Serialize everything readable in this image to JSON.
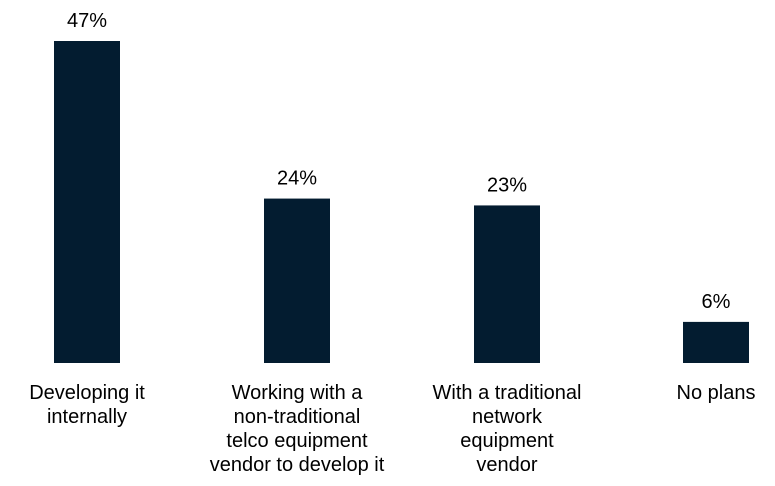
{
  "chart_data": {
    "type": "bar",
    "categories": [
      [
        "Developing it",
        "internally"
      ],
      [
        "Working with a",
        "non-traditional",
        "telco equipment",
        "vendor to develop it"
      ],
      [
        "With a traditional",
        "network",
        "equipment",
        "vendor"
      ],
      [
        "No plans"
      ]
    ],
    "values": [
      47,
      24,
      23,
      6
    ],
    "value_labels": [
      "47%",
      "24%",
      "23%",
      "6%"
    ],
    "unit": "%",
    "title": "",
    "xlabel": "",
    "ylabel": "",
    "ylim": [
      0,
      47
    ],
    "grid": false,
    "legend": "none",
    "bar_color": "#031c30"
  }
}
